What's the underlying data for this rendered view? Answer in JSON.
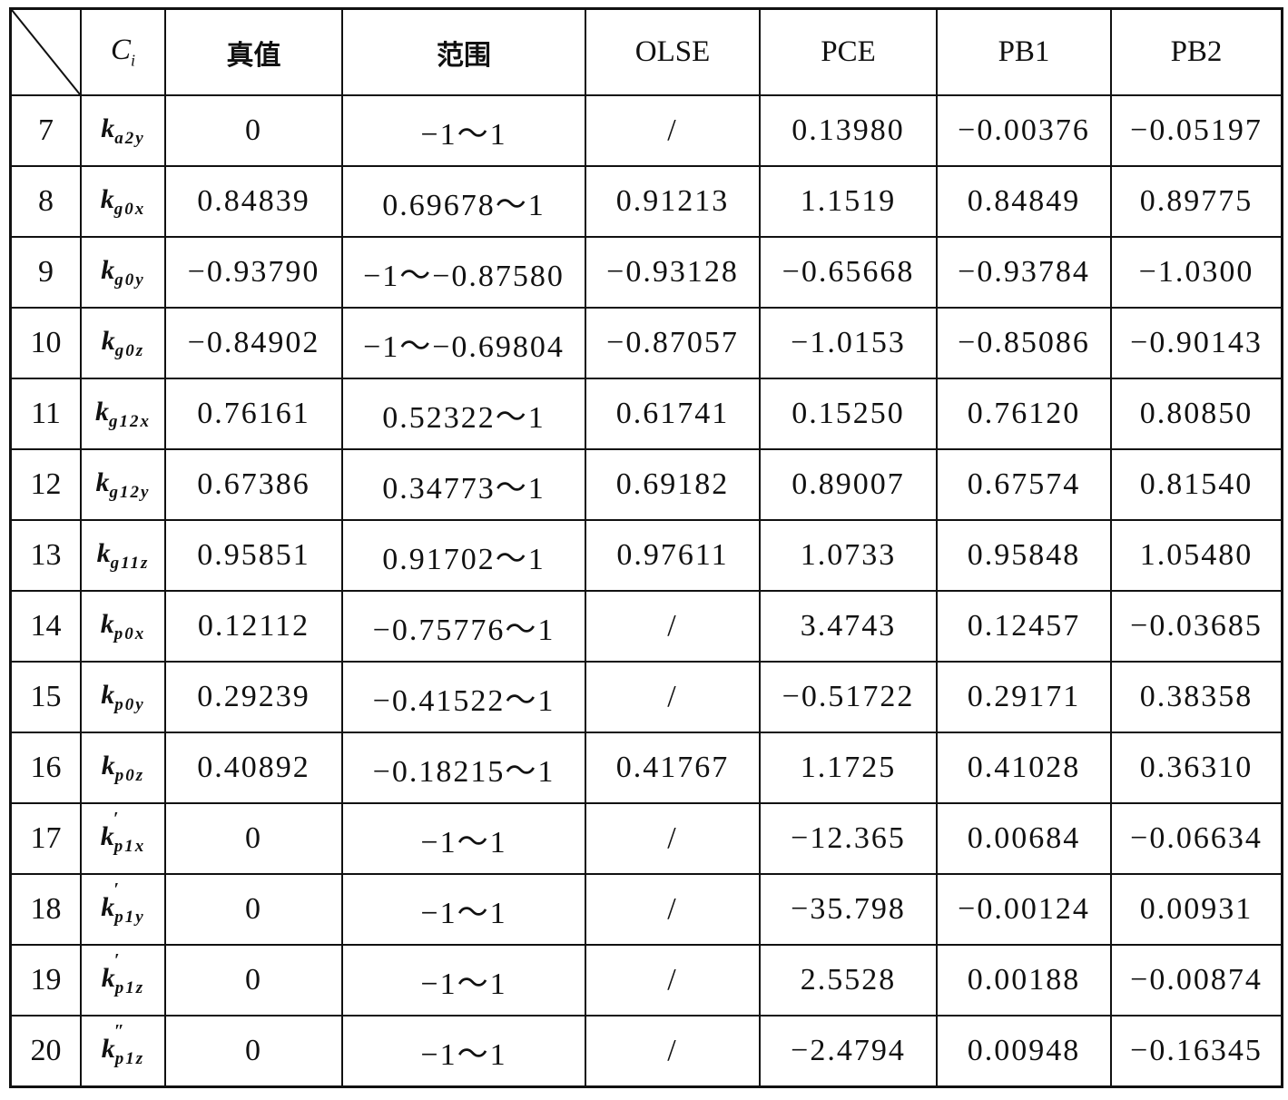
{
  "header": {
    "ci_base": "C",
    "ci_sub": "i",
    "columns": [
      "真值",
      "范围",
      "OLSE",
      "PCE",
      "PB1",
      "PB2"
    ]
  },
  "rows": [
    {
      "index": "7",
      "symbol": {
        "base": "k",
        "prime": "",
        "sub": "a2y"
      },
      "values": [
        "0",
        "−1～1",
        "/",
        "0.13980",
        "−0.00376",
        "−0.05197"
      ]
    },
    {
      "index": "8",
      "symbol": {
        "base": "k",
        "prime": "",
        "sub": "g0x"
      },
      "values": [
        "0.84839",
        "0.69678～1",
        "0.91213",
        "1.1519",
        "0.84849",
        "0.89775"
      ]
    },
    {
      "index": "9",
      "symbol": {
        "base": "k",
        "prime": "",
        "sub": "g0y"
      },
      "values": [
        "−0.93790",
        "−1～−0.87580",
        "−0.93128",
        "−0.65668",
        "−0.93784",
        "−1.0300"
      ]
    },
    {
      "index": "10",
      "symbol": {
        "base": "k",
        "prime": "",
        "sub": "g0z"
      },
      "values": [
        "−0.84902",
        "−1～−0.69804",
        "−0.87057",
        "−1.0153",
        "−0.85086",
        "−0.90143"
      ]
    },
    {
      "index": "11",
      "symbol": {
        "base": "k",
        "prime": "",
        "sub": "g12x"
      },
      "values": [
        "0.76161",
        "0.52322～1",
        "0.61741",
        "0.15250",
        "0.76120",
        "0.80850"
      ]
    },
    {
      "index": "12",
      "symbol": {
        "base": "k",
        "prime": "",
        "sub": "g12y"
      },
      "values": [
        "0.67386",
        "0.34773～1",
        "0.69182",
        "0.89007",
        "0.67574",
        "0.81540"
      ]
    },
    {
      "index": "13",
      "symbol": {
        "base": "k",
        "prime": "",
        "sub": "g11z"
      },
      "values": [
        "0.95851",
        "0.91702～1",
        "0.97611",
        "1.0733",
        "0.95848",
        "1.05480"
      ]
    },
    {
      "index": "14",
      "symbol": {
        "base": "k",
        "prime": "",
        "sub": "p0x"
      },
      "values": [
        "0.12112",
        "−0.75776～1",
        "/",
        "3.4743",
        "0.12457",
        "−0.03685"
      ]
    },
    {
      "index": "15",
      "symbol": {
        "base": "k",
        "prime": "",
        "sub": "p0y"
      },
      "values": [
        "0.29239",
        "−0.41522～1",
        "/",
        "−0.51722",
        "0.29171",
        "0.38358"
      ]
    },
    {
      "index": "16",
      "symbol": {
        "base": "k",
        "prime": "",
        "sub": "p0z"
      },
      "values": [
        "0.40892",
        "−0.18215～1",
        "0.41767",
        "1.1725",
        "0.41028",
        "0.36310"
      ]
    },
    {
      "index": "17",
      "symbol": {
        "base": "k",
        "prime": "′",
        "sub": "p1x"
      },
      "values": [
        "0",
        "−1～1",
        "/",
        "−12.365",
        "0.00684",
        "−0.06634"
      ]
    },
    {
      "index": "18",
      "symbol": {
        "base": "k",
        "prime": "′",
        "sub": "p1y"
      },
      "values": [
        "0",
        "−1～1",
        "/",
        "−35.798",
        "−0.00124",
        "0.00931"
      ]
    },
    {
      "index": "19",
      "symbol": {
        "base": "k",
        "prime": "′",
        "sub": "p1z"
      },
      "values": [
        "0",
        "−1～1",
        "/",
        "2.5528",
        "0.00188",
        "−0.00874"
      ]
    },
    {
      "index": "20",
      "symbol": {
        "base": "k",
        "prime": "″",
        "sub": "p1z"
      },
      "values": [
        "0",
        "−1～1",
        "/",
        "−2.4794",
        "0.00948",
        "−0.16345"
      ]
    }
  ]
}
